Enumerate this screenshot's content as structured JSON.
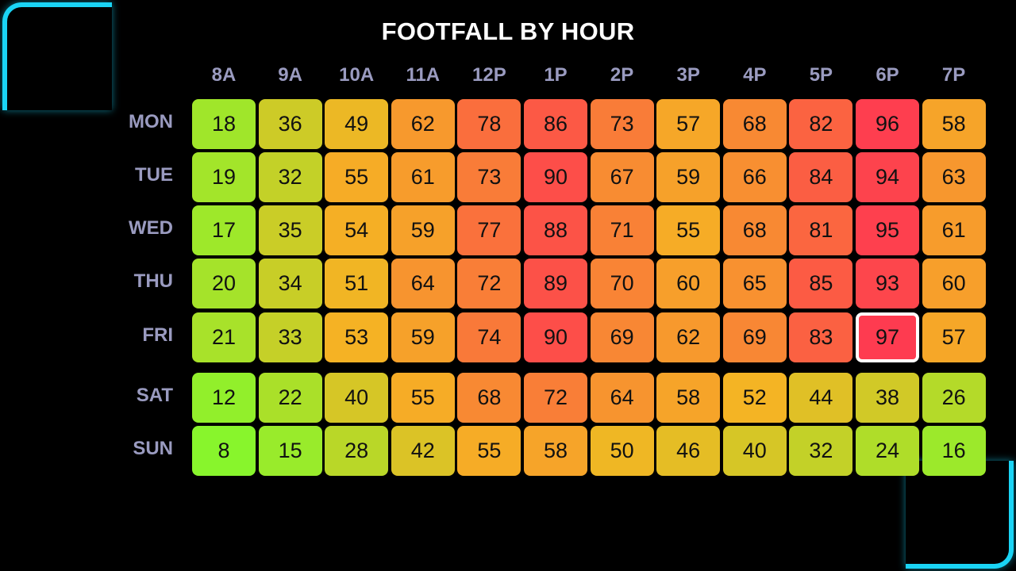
{
  "chart_data": {
    "type": "heatmap",
    "title": "FOOTFALL BY HOUR",
    "xlabel": "",
    "ylabel": "",
    "x": [
      "8A",
      "9A",
      "10A",
      "11A",
      "12P",
      "1P",
      "2P",
      "3P",
      "4P",
      "5P",
      "6P",
      "7P"
    ],
    "y": [
      "MON",
      "TUE",
      "WED",
      "THU",
      "FRI",
      "SAT",
      "SUN"
    ],
    "values": [
      [
        18,
        36,
        49,
        62,
        78,
        86,
        73,
        57,
        68,
        82,
        96,
        58
      ],
      [
        19,
        32,
        55,
        61,
        73,
        90,
        67,
        59,
        66,
        84,
        94,
        63
      ],
      [
        17,
        35,
        54,
        59,
        77,
        88,
        71,
        55,
        68,
        81,
        95,
        61
      ],
      [
        20,
        34,
        51,
        64,
        72,
        89,
        70,
        60,
        65,
        85,
        93,
        60
      ],
      [
        21,
        33,
        53,
        59,
        74,
        90,
        69,
        62,
        69,
        83,
        97,
        57
      ],
      [
        12,
        22,
        40,
        55,
        68,
        72,
        64,
        58,
        52,
        44,
        38,
        26
      ],
      [
        8,
        15,
        28,
        42,
        55,
        58,
        50,
        46,
        40,
        32,
        24,
        16
      ]
    ],
    "highlight": {
      "row": "FRI",
      "column": "6P"
    },
    "color_scale": [
      "#88f52c",
      "#f5b324",
      "#fe3b50"
    ],
    "accent_color": "#1ad4f5"
  }
}
